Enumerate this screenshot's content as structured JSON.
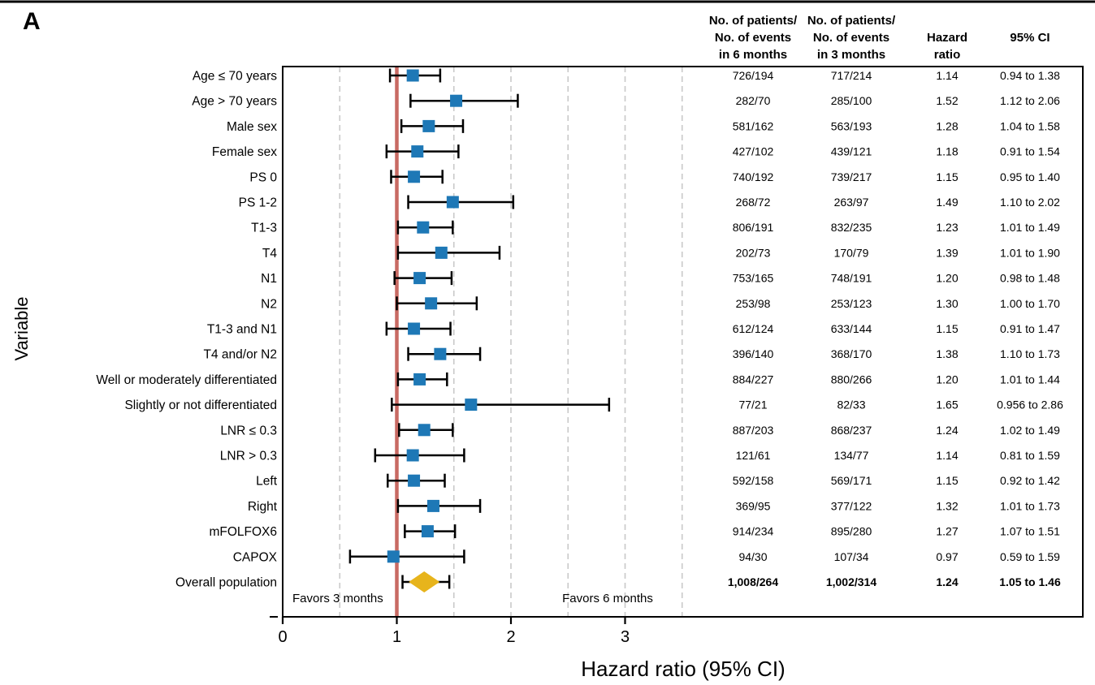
{
  "panel_label": "A",
  "y_axis": {
    "title": "Variable"
  },
  "x_axis": {
    "title": "Hazard ratio (95% CI)",
    "tick_labels": [
      "0",
      "1",
      "2",
      "3"
    ],
    "tick_values": [
      0,
      1,
      2,
      3
    ],
    "range": [
      0,
      3.5
    ]
  },
  "annotations": {
    "favors_left": "Favors 3 months",
    "favors_right": "Favors 6 months"
  },
  "table": {
    "columns": [
      {
        "lines": [
          "No. of patients/",
          "No. of events",
          "in 6 months"
        ]
      },
      {
        "lines": [
          "No. of patients/",
          "No. of events",
          "in 3 months"
        ]
      },
      {
        "lines": [
          "Hazard",
          "ratio"
        ]
      },
      {
        "lines": [
          "95% CI"
        ]
      }
    ]
  },
  "colors": {
    "marker_square": "#1e78b6",
    "overall_diamond": "#e7b41c",
    "reference_line": "#c86a63",
    "gridline": "#c9c9c9",
    "frame": "#000000",
    "text": "#000000"
  },
  "chart_data": {
    "type": "forest",
    "xlabel": "Hazard ratio (95% CI)",
    "ylabel": "Variable",
    "x_range": [
      0,
      3.5
    ],
    "reference_value": 1.0,
    "gridline_values": [
      0.5,
      1.5,
      2.0,
      2.5,
      3.0,
      3.5
    ],
    "grid": "dashed-vertical",
    "rows": [
      {
        "label": "Age ≤ 70 years",
        "pts6": "726/194",
        "pts3": "717/214",
        "hr": 1.14,
        "lo": 0.94,
        "hi": 1.38,
        "hr_text": "1.14",
        "ci_text": "0.94 to 1.38",
        "marker": "square",
        "bold": false
      },
      {
        "label": "Age > 70 years",
        "pts6": "282/70",
        "pts3": "285/100",
        "hr": 1.52,
        "lo": 1.12,
        "hi": 2.06,
        "hr_text": "1.52",
        "ci_text": "1.12 to 2.06",
        "marker": "square",
        "bold": false
      },
      {
        "label": "Male sex",
        "pts6": "581/162",
        "pts3": "563/193",
        "hr": 1.28,
        "lo": 1.04,
        "hi": 1.58,
        "hr_text": "1.28",
        "ci_text": "1.04 to 1.58",
        "marker": "square",
        "bold": false
      },
      {
        "label": "Female sex",
        "pts6": "427/102",
        "pts3": "439/121",
        "hr": 1.18,
        "lo": 0.91,
        "hi": 1.54,
        "hr_text": "1.18",
        "ci_text": "0.91 to 1.54",
        "marker": "square",
        "bold": false
      },
      {
        "label": "PS 0",
        "pts6": "740/192",
        "pts3": "739/217",
        "hr": 1.15,
        "lo": 0.95,
        "hi": 1.4,
        "hr_text": "1.15",
        "ci_text": "0.95 to 1.40",
        "marker": "square",
        "bold": false
      },
      {
        "label": "PS 1-2",
        "pts6": "268/72",
        "pts3": "263/97",
        "hr": 1.49,
        "lo": 1.1,
        "hi": 2.02,
        "hr_text": "1.49",
        "ci_text": "1.10 to 2.02",
        "marker": "square",
        "bold": false
      },
      {
        "label": "T1-3",
        "pts6": "806/191",
        "pts3": "832/235",
        "hr": 1.23,
        "lo": 1.01,
        "hi": 1.49,
        "hr_text": "1.23",
        "ci_text": "1.01 to 1.49",
        "marker": "square",
        "bold": false
      },
      {
        "label": "T4",
        "pts6": "202/73",
        "pts3": "170/79",
        "hr": 1.39,
        "lo": 1.01,
        "hi": 1.9,
        "hr_text": "1.39",
        "ci_text": "1.01 to 1.90",
        "marker": "square",
        "bold": false
      },
      {
        "label": "N1",
        "pts6": "753/165",
        "pts3": "748/191",
        "hr": 1.2,
        "lo": 0.98,
        "hi": 1.48,
        "hr_text": "1.20",
        "ci_text": "0.98 to 1.48",
        "marker": "square",
        "bold": false
      },
      {
        "label": "N2",
        "pts6": "253/98",
        "pts3": "253/123",
        "hr": 1.3,
        "lo": 1.0,
        "hi": 1.7,
        "hr_text": "1.30",
        "ci_text": "1.00 to 1.70",
        "marker": "square",
        "bold": false
      },
      {
        "label": "T1-3 and N1",
        "pts6": "612/124",
        "pts3": "633/144",
        "hr": 1.15,
        "lo": 0.91,
        "hi": 1.47,
        "hr_text": "1.15",
        "ci_text": "0.91 to 1.47",
        "marker": "square",
        "bold": false
      },
      {
        "label": "T4 and/or N2",
        "pts6": "396/140",
        "pts3": "368/170",
        "hr": 1.38,
        "lo": 1.1,
        "hi": 1.73,
        "hr_text": "1.38",
        "ci_text": "1.10 to 1.73",
        "marker": "square",
        "bold": false
      },
      {
        "label": "Well or moderately differentiated",
        "pts6": "884/227",
        "pts3": "880/266",
        "hr": 1.2,
        "lo": 1.01,
        "hi": 1.44,
        "hr_text": "1.20",
        "ci_text": "1.01 to 1.44",
        "marker": "square",
        "bold": false
      },
      {
        "label": "Slightly or not differentiated",
        "pts6": "77/21",
        "pts3": "82/33",
        "hr": 1.65,
        "lo": 0.956,
        "hi": 2.86,
        "hr_text": "1.65",
        "ci_text": "0.956 to 2.86",
        "marker": "square",
        "bold": false
      },
      {
        "label": "LNR ≤ 0.3",
        "pts6": "887/203",
        "pts3": "868/237",
        "hr": 1.24,
        "lo": 1.02,
        "hi": 1.49,
        "hr_text": "1.24",
        "ci_text": "1.02 to 1.49",
        "marker": "square",
        "bold": false
      },
      {
        "label": "LNR > 0.3",
        "pts6": "121/61",
        "pts3": "134/77",
        "hr": 1.14,
        "lo": 0.81,
        "hi": 1.59,
        "hr_text": "1.14",
        "ci_text": "0.81 to 1.59",
        "marker": "square",
        "bold": false
      },
      {
        "label": "Left",
        "pts6": "592/158",
        "pts3": "569/171",
        "hr": 1.15,
        "lo": 0.92,
        "hi": 1.42,
        "hr_text": "1.15",
        "ci_text": "0.92 to 1.42",
        "marker": "square",
        "bold": false
      },
      {
        "label": "Right",
        "pts6": "369/95",
        "pts3": "377/122",
        "hr": 1.32,
        "lo": 1.01,
        "hi": 1.73,
        "hr_text": "1.32",
        "ci_text": "1.01 to 1.73",
        "marker": "square",
        "bold": false
      },
      {
        "label": "mFOLFOX6",
        "pts6": "914/234",
        "pts3": "895/280",
        "hr": 1.27,
        "lo": 1.07,
        "hi": 1.51,
        "hr_text": "1.27",
        "ci_text": "1.07 to 1.51",
        "marker": "square",
        "bold": false
      },
      {
        "label": "CAPOX",
        "pts6": "94/30",
        "pts3": "107/34",
        "hr": 0.97,
        "lo": 0.59,
        "hi": 1.59,
        "hr_text": "0.97",
        "ci_text": "0.59 to 1.59",
        "marker": "square",
        "bold": false
      },
      {
        "label": "Overall population",
        "pts6": "1,008/264",
        "pts3": "1,002/314",
        "hr": 1.24,
        "lo": 1.05,
        "hi": 1.46,
        "hr_text": "1.24",
        "ci_text": "1.05 to 1.46",
        "marker": "diamond",
        "bold": true
      }
    ]
  }
}
